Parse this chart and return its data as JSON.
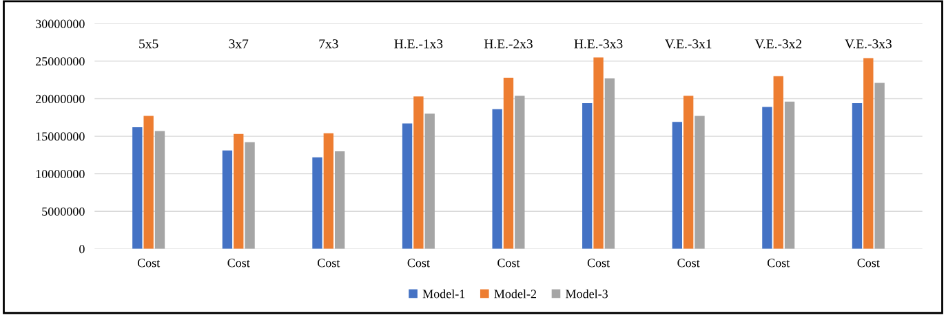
{
  "chart_data": {
    "type": "bar",
    "categories": [
      "Cost",
      "Cost",
      "Cost",
      "Cost",
      "Cost",
      "Cost",
      "Cost",
      "Cost",
      "Cost"
    ],
    "annotations": [
      "5x5",
      "3x7",
      "7x3",
      "H.E.-1x3",
      "H.E.-2x3",
      "H.E.-3x3",
      "V.E.-3x1",
      "V.E.-3x2",
      "V.E.-3x3"
    ],
    "series": [
      {
        "name": "Model-1",
        "color": "#4472c4",
        "values": [
          16200000,
          13100000,
          12200000,
          16700000,
          18600000,
          19400000,
          16900000,
          18900000,
          19400000
        ]
      },
      {
        "name": "Model-2",
        "color": "#ed7d31",
        "values": [
          17700000,
          15300000,
          15400000,
          20300000,
          22800000,
          25500000,
          20400000,
          23000000,
          25400000
        ]
      },
      {
        "name": "Model-3",
        "color": "#a5a5a5",
        "values": [
          15700000,
          14200000,
          13000000,
          18000000,
          20400000,
          22700000,
          17700000,
          19600000,
          22100000
        ]
      }
    ],
    "ylim": [
      0,
      30000000
    ],
    "yticks": [
      0,
      5000000,
      10000000,
      15000000,
      20000000,
      25000000,
      30000000
    ],
    "grid": "y",
    "legend": "bottom"
  }
}
